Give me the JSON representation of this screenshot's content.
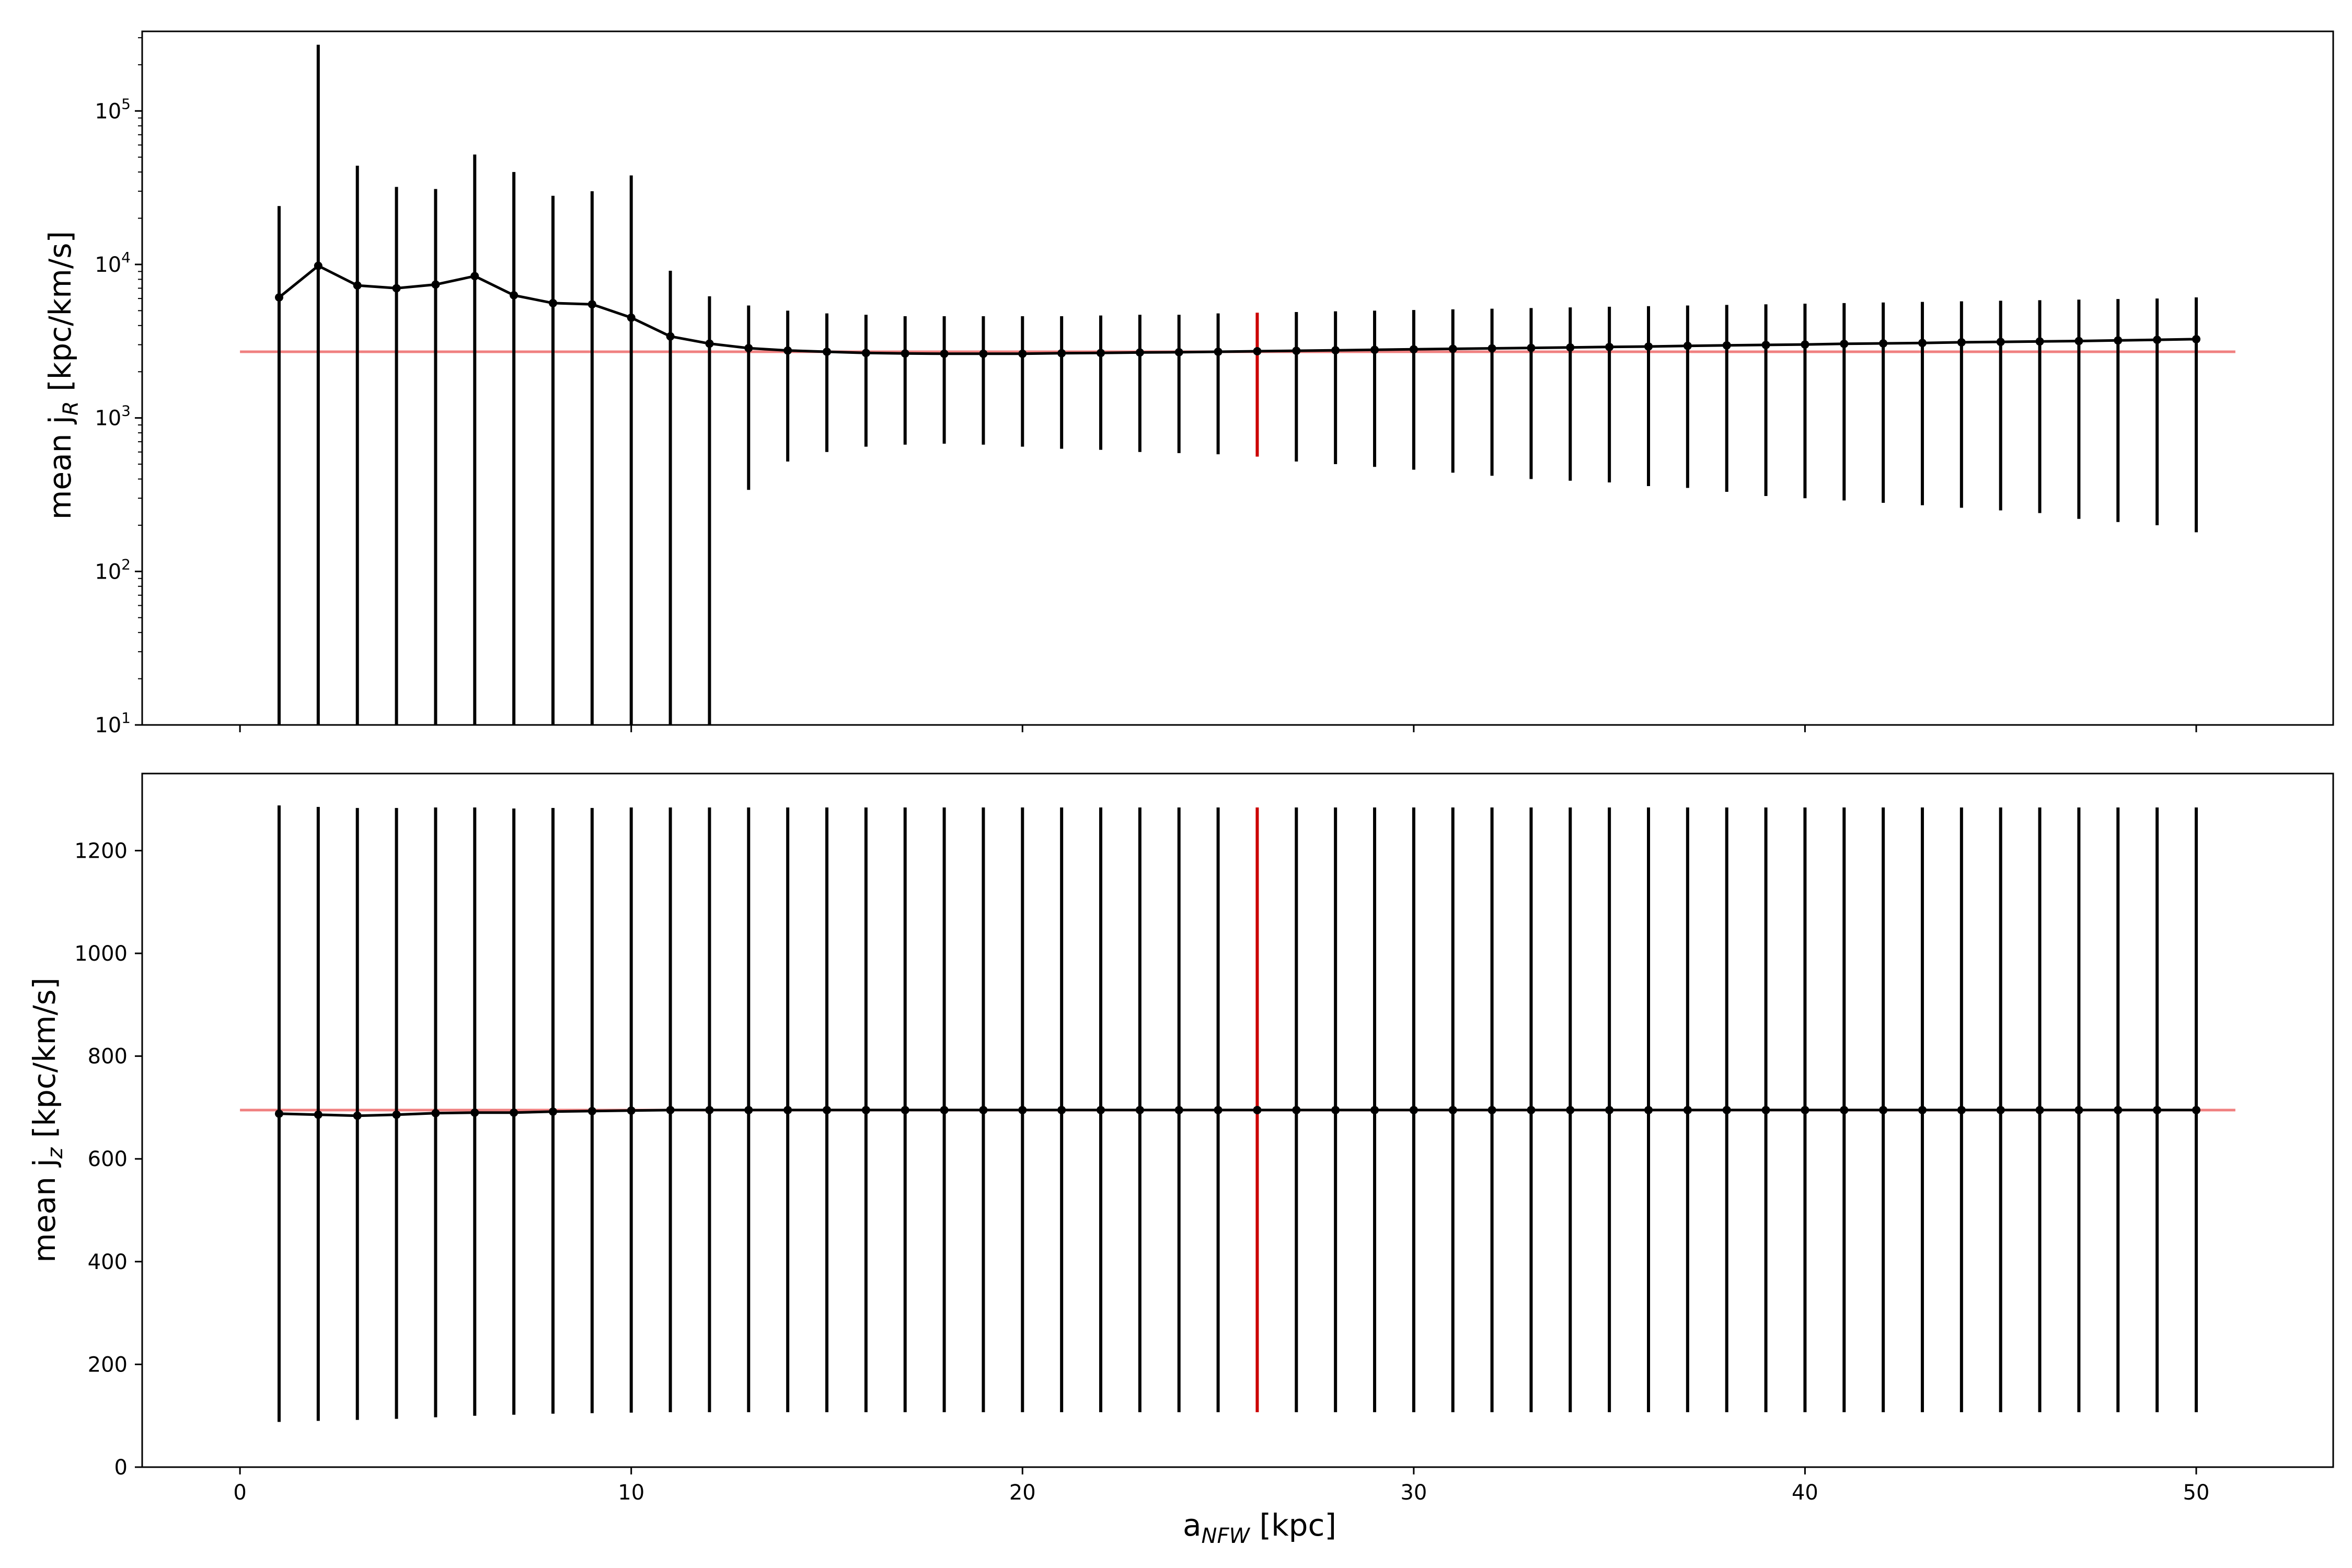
{
  "chart_data": [
    {
      "type": "line",
      "panel": "top",
      "ylabel": "mean j_R [kpc/km/s]",
      "ylabel_main": "mean j",
      "ylabel_sub": "R",
      "ylabel_rest": " [kpc/km/s]",
      "yscale": "log",
      "xlim": [
        -2.5,
        53.5
      ],
      "ylim": [
        10,
        330000
      ],
      "yticks": [
        {
          "value": 10,
          "base": "10",
          "exp": "1"
        },
        {
          "value": 100,
          "base": "10",
          "exp": "2"
        },
        {
          "value": 1000,
          "base": "10",
          "exp": "3"
        },
        {
          "value": 10000,
          "base": "10",
          "exp": "4"
        },
        {
          "value": 100000,
          "base": "10",
          "exp": "5"
        }
      ],
      "reference_line": {
        "y": 2700,
        "x_range": [
          0,
          51
        ],
        "color": "#f08080"
      },
      "highlight": {
        "x": 26,
        "color": "#cc0000"
      },
      "line_color": "#000000",
      "x": [
        1,
        2,
        3,
        4,
        5,
        6,
        7,
        8,
        9,
        10,
        11,
        12,
        13,
        14,
        15,
        16,
        17,
        18,
        19,
        20,
        21,
        22,
        23,
        24,
        25,
        26,
        27,
        28,
        29,
        30,
        31,
        32,
        33,
        34,
        35,
        36,
        37,
        38,
        39,
        40,
        41,
        42,
        43,
        44,
        45,
        46,
        47,
        48,
        49,
        50
      ],
      "y": [
        6100,
        9800,
        7300,
        7000,
        7400,
        8400,
        6300,
        5600,
        5500,
        4500,
        3400,
        3050,
        2850,
        2750,
        2700,
        2650,
        2630,
        2620,
        2620,
        2620,
        2640,
        2650,
        2670,
        2680,
        2700,
        2720,
        2740,
        2760,
        2780,
        2800,
        2820,
        2840,
        2860,
        2880,
        2900,
        2920,
        2950,
        2970,
        2990,
        3010,
        3040,
        3060,
        3080,
        3110,
        3130,
        3150,
        3170,
        3200,
        3230,
        3260
      ],
      "err_low": [
        10,
        10,
        10,
        10,
        10,
        10,
        10,
        10,
        10,
        10,
        10,
        10,
        340,
        520,
        600,
        650,
        670,
        680,
        670,
        650,
        630,
        620,
        600,
        590,
        580,
        560,
        520,
        500,
        480,
        460,
        440,
        420,
        400,
        390,
        380,
        360,
        350,
        330,
        310,
        300,
        290,
        280,
        270,
        260,
        250,
        240,
        220,
        210,
        200,
        180
      ],
      "err_high": [
        24000,
        270000,
        44000,
        32000,
        31000,
        52000,
        40000,
        28000,
        30000,
        38000,
        9100,
        6200,
        5400,
        5000,
        4800,
        4700,
        4600,
        4600,
        4600,
        4600,
        4600,
        4650,
        4700,
        4700,
        4800,
        4850,
        4900,
        4950,
        5000,
        5050,
        5100,
        5150,
        5200,
        5250,
        5300,
        5350,
        5400,
        5450,
        5500,
        5550,
        5600,
        5650,
        5700,
        5750,
        5800,
        5850,
        5900,
        5950,
        6000,
        6100
      ]
    },
    {
      "type": "line",
      "panel": "bottom",
      "xlabel": "a_NFW [kpc]",
      "xlabel_main": "a",
      "xlabel_sub": "NFW",
      "xlabel_rest": " [kpc]",
      "ylabel": "mean j_z [kpc/km/s]",
      "ylabel_main": "mean j",
      "ylabel_sub": "z",
      "ylabel_rest": " [kpc/km/s]",
      "yscale": "linear",
      "xlim": [
        -2.5,
        53.5
      ],
      "ylim": [
        0,
        1350
      ],
      "xticks": [
        "0",
        "10",
        "20",
        "30",
        "40",
        "50"
      ],
      "xtick_values": [
        0,
        10,
        20,
        30,
        40,
        50
      ],
      "yticks": [
        "0",
        "200",
        "400",
        "600",
        "800",
        "1000",
        "1200"
      ],
      "ytick_values": [
        0,
        200,
        400,
        600,
        800,
        1000,
        1200
      ],
      "reference_line": {
        "y": 695,
        "x_range": [
          0,
          51
        ],
        "color": "#f08080"
      },
      "highlight": {
        "x": 26,
        "color": "#cc0000"
      },
      "line_color": "#000000",
      "x": [
        1,
        2,
        3,
        4,
        5,
        6,
        7,
        8,
        9,
        10,
        11,
        12,
        13,
        14,
        15,
        16,
        17,
        18,
        19,
        20,
        21,
        22,
        23,
        24,
        25,
        26,
        27,
        28,
        29,
        30,
        31,
        32,
        33,
        34,
        35,
        36,
        37,
        38,
        39,
        40,
        41,
        42,
        43,
        44,
        45,
        46,
        47,
        48,
        49,
        50
      ],
      "y": [
        688,
        686,
        684,
        686,
        689,
        690,
        690,
        692,
        693,
        694,
        695,
        695,
        695,
        695,
        695,
        695,
        695,
        695,
        695,
        695,
        695,
        695,
        695,
        695,
        695,
        695,
        695,
        695,
        695,
        695,
        695,
        695,
        695,
        695,
        695,
        695,
        695,
        695,
        695,
        695,
        695,
        695,
        695,
        695,
        695,
        695,
        695,
        695,
        695,
        695
      ],
      "err_low": [
        88,
        90,
        92,
        94,
        97,
        100,
        102,
        104,
        105,
        106,
        107,
        107,
        107,
        107,
        107,
        107,
        107,
        107,
        107,
        107,
        107,
        107,
        107,
        107,
        107,
        107,
        107,
        107,
        107,
        107,
        107,
        107,
        107,
        107,
        107,
        107,
        107,
        107,
        107,
        107,
        107,
        107,
        107,
        107,
        107,
        107,
        107,
        107,
        107,
        107
      ],
      "err_high": [
        1288,
        1285,
        1283,
        1283,
        1284,
        1284,
        1282,
        1283,
        1283,
        1284,
        1284,
        1284,
        1284,
        1284,
        1284,
        1284,
        1284,
        1284,
        1284,
        1284,
        1284,
        1284,
        1284,
        1284,
        1284,
        1284,
        1284,
        1284,
        1284,
        1284,
        1284,
        1284,
        1284,
        1284,
        1284,
        1284,
        1284,
        1284,
        1284,
        1284,
        1284,
        1284,
        1284,
        1284,
        1284,
        1284,
        1284,
        1284,
        1284,
        1284
      ]
    }
  ]
}
